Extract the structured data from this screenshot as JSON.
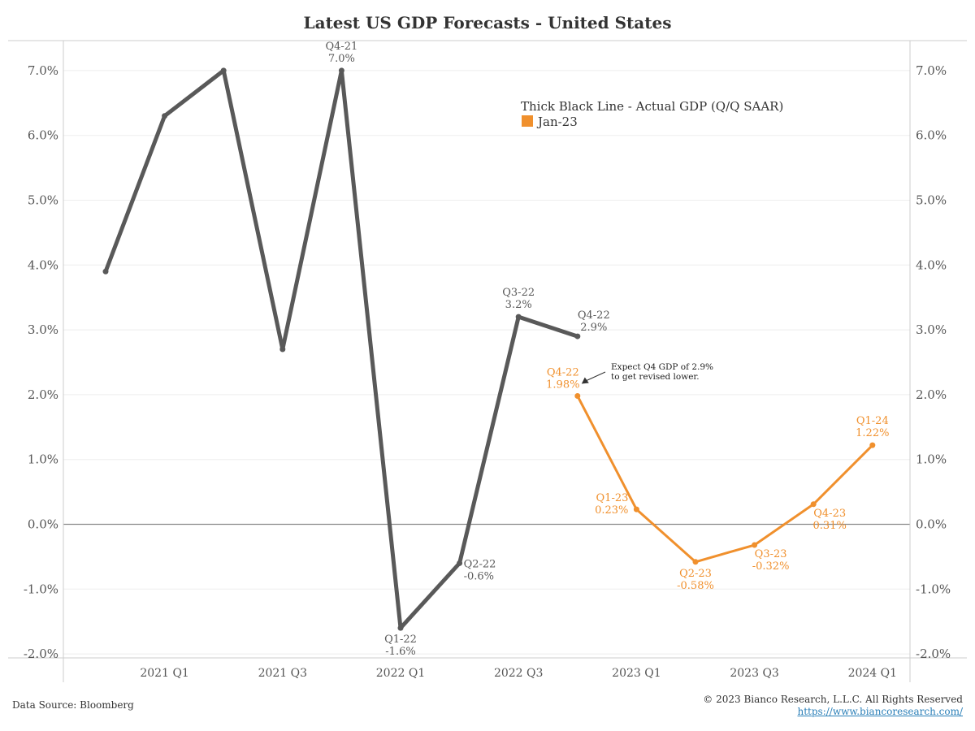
{
  "title": "Latest US GDP Forecasts - United States",
  "footer": {
    "source": "Data Source: Bloomberg",
    "copyright": "© 2023 Bianco Research, L.L.C. All Rights Reserved",
    "url": "https://www.biancoresearch.com/"
  },
  "chart_data": {
    "type": "line",
    "title": "Latest US GDP Forecasts - United States",
    "y_ticks": [
      "7.0%",
      "6.0%",
      "5.0%",
      "4.0%",
      "3.0%",
      "2.0%",
      "1.0%",
      "0.0%",
      "-1.0%",
      "-2.0%"
    ],
    "ylim": [
      -2.0,
      7.0
    ],
    "x_ticks": [
      "2021 Q1",
      "2021 Q3",
      "2022 Q1",
      "2022 Q3",
      "2023 Q1",
      "2023 Q3",
      "2024 Q1"
    ],
    "x_periods": [
      "2020 Q4",
      "2021 Q1",
      "2021 Q2",
      "2021 Q3",
      "2021 Q4",
      "2022 Q1",
      "2022 Q2",
      "2022 Q3",
      "2022 Q4",
      "2023 Q1",
      "2023 Q2",
      "2023 Q3",
      "2023 Q4",
      "2024 Q1"
    ],
    "grid": "horizontal",
    "legend": {
      "position": "top-right",
      "note": "Thick Black Line - Actual GDP (Q/Q SAAR)",
      "entries": [
        {
          "label": "Jan-23",
          "color": "#f0902d"
        }
      ]
    },
    "series": [
      {
        "role": "actual",
        "color": "#595959",
        "x": [
          "2020 Q4",
          "2021 Q1",
          "2021 Q2",
          "2021 Q3",
          "2021 Q4",
          "2022 Q1",
          "2022 Q2",
          "2022 Q3",
          "2022 Q4"
        ],
        "values": [
          3.9,
          6.3,
          7.0,
          2.7,
          7.0,
          -1.6,
          -0.6,
          3.2,
          2.9
        ],
        "labels": [
          {
            "x": "2021 Q4",
            "lines": [
              "Q4-21",
              "7.0%"
            ],
            "pos": "above"
          },
          {
            "x": "2022 Q1",
            "lines": [
              "Q1-22",
              "-1.6%"
            ],
            "pos": "below"
          },
          {
            "x": "2022 Q2",
            "lines": [
              "Q2-22",
              "-0.6%"
            ],
            "pos": "right"
          },
          {
            "x": "2022 Q3",
            "lines": [
              "Q3-22",
              "3.2%"
            ],
            "pos": "above"
          },
          {
            "x": "2022 Q4",
            "lines": [
              "Q4-22",
              "2.9%"
            ],
            "pos": "above-right"
          }
        ]
      },
      {
        "name": "Jan-23",
        "color": "#f0902d",
        "x": [
          "2022 Q4",
          "2023 Q1",
          "2023 Q2",
          "2023 Q3",
          "2023 Q4",
          "2024 Q1"
        ],
        "values": [
          1.98,
          0.23,
          -0.58,
          -0.32,
          0.31,
          1.22
        ],
        "labels": [
          {
            "x": "2022 Q4",
            "lines": [
              "Q4-22",
              "1.98%"
            ],
            "pos": "above-left"
          },
          {
            "x": "2023 Q1",
            "lines": [
              "Q1-23",
              "0.23%"
            ],
            "pos": "left"
          },
          {
            "x": "2023 Q2",
            "lines": [
              "Q2-23",
              "-0.58%"
            ],
            "pos": "below"
          },
          {
            "x": "2023 Q3",
            "lines": [
              "Q3-23",
              "-0.32%"
            ],
            "pos": "below-right"
          },
          {
            "x": "2023 Q4",
            "lines": [
              "Q4-23",
              "0.31%"
            ],
            "pos": "below-right"
          },
          {
            "x": "2024 Q1",
            "lines": [
              "Q1-24",
              "1.22%"
            ],
            "pos": "above"
          }
        ]
      }
    ],
    "annotations": [
      {
        "lines": [
          "Expect Q4 GDP of 2.9%",
          "to get revised lower."
        ],
        "points_to": {
          "x": "2022 Q4",
          "y": 1.98
        }
      }
    ]
  }
}
